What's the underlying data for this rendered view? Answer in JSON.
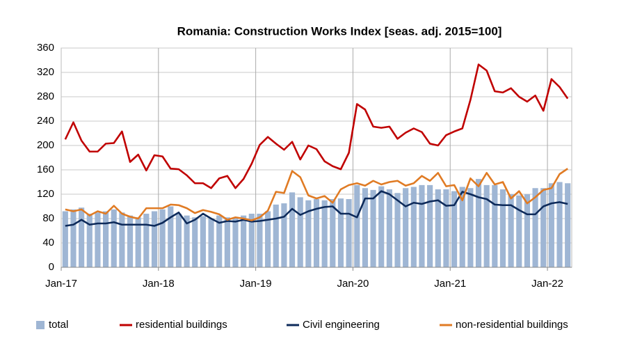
{
  "chart_data": {
    "type": "combo",
    "title": "Romania: Construction Works Index [seas. adj. 2015=100]",
    "categories": [
      "Jan-17",
      null,
      null,
      null,
      null,
      null,
      null,
      null,
      null,
      null,
      null,
      null,
      "Jan-18",
      null,
      null,
      null,
      null,
      null,
      null,
      null,
      null,
      null,
      null,
      null,
      "Jan-19",
      null,
      null,
      null,
      null,
      null,
      null,
      null,
      null,
      null,
      null,
      null,
      "Jan-20",
      null,
      null,
      null,
      null,
      null,
      null,
      null,
      null,
      null,
      null,
      null,
      "Jan-21",
      null,
      null,
      null,
      null,
      null,
      null,
      null,
      null,
      null,
      null,
      null,
      "Jan-22",
      null,
      null
    ],
    "ylim": [
      0,
      360
    ],
    "yticks": [
      0,
      40,
      80,
      120,
      160,
      200,
      240,
      280,
      320,
      360
    ],
    "grid": true,
    "series": [
      {
        "name": "total",
        "type": "bar",
        "color": "#9fb6d4",
        "values": [
          92,
          95,
          98,
          88,
          90,
          92,
          95,
          90,
          85,
          82,
          88,
          92,
          95,
          100,
          88,
          85,
          82,
          84,
          80,
          85,
          82,
          80,
          85,
          88,
          88,
          92,
          103,
          105,
          123,
          115,
          110,
          112,
          110,
          112,
          113,
          112,
          135,
          130,
          127,
          133,
          128,
          122,
          130,
          132,
          135,
          135,
          128,
          128,
          125,
          132,
          130,
          145,
          135,
          135,
          128,
          120,
          118,
          120,
          130,
          130,
          138,
          140,
          138
        ]
      },
      {
        "name": "residential buildings",
        "type": "line",
        "color": "#c00000",
        "values": [
          210,
          238,
          208,
          190,
          190,
          203,
          204,
          223,
          173,
          185,
          159,
          184,
          182,
          162,
          161,
          151,
          138,
          138,
          130,
          146,
          150,
          130,
          145,
          170,
          201,
          214,
          203,
          193,
          206,
          177,
          200,
          194,
          174,
          166,
          161,
          188,
          268,
          259,
          231,
          229,
          231,
          211,
          221,
          228,
          222,
          203,
          200,
          217,
          223,
          228,
          275,
          333,
          323,
          289,
          287,
          294,
          280,
          272,
          282,
          257,
          309,
          296,
          277
        ]
      },
      {
        "name": "Civil engineering",
        "type": "line",
        "color": "#0d2a5a",
        "values": [
          68,
          70,
          78,
          70,
          72,
          72,
          74,
          70,
          70,
          70,
          70,
          68,
          73,
          82,
          90,
          72,
          78,
          88,
          80,
          73,
          76,
          75,
          78,
          75,
          76,
          78,
          80,
          83,
          96,
          86,
          92,
          96,
          99,
          100,
          88,
          88,
          82,
          113,
          113,
          125,
          120,
          110,
          100,
          106,
          104,
          108,
          110,
          101,
          102,
          124,
          120,
          115,
          112,
          103,
          102,
          102,
          94,
          87,
          87,
          100,
          105,
          107,
          104
        ]
      },
      {
        "name": "non-residential buildings",
        "type": "line",
        "color": "#e07b24",
        "values": [
          95,
          92,
          95,
          85,
          92,
          88,
          101,
          88,
          83,
          80,
          97,
          97,
          97,
          103,
          102,
          97,
          89,
          94,
          91,
          87,
          78,
          82,
          80,
          77,
          82,
          93,
          124,
          122,
          158,
          148,
          118,
          113,
          117,
          106,
          128,
          135,
          138,
          134,
          142,
          136,
          140,
          142,
          134,
          138,
          150,
          142,
          155,
          133,
          135,
          110,
          146,
          133,
          155,
          136,
          140,
          113,
          125,
          105,
          115,
          127,
          130,
          153,
          162
        ]
      }
    ]
  }
}
